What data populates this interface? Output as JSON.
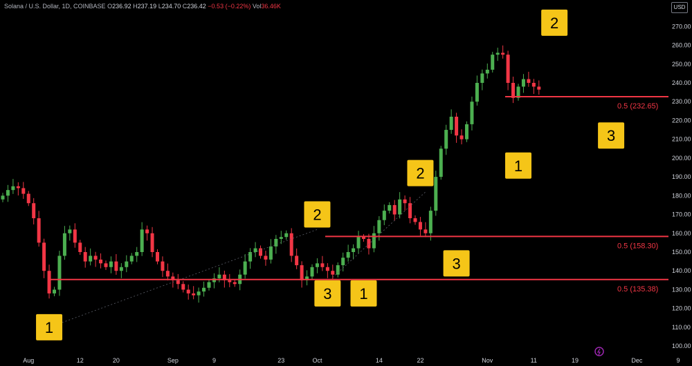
{
  "legend": {
    "symbol": "Solana / U.S. Dollar, 1D, COINBASE",
    "o_label": "O",
    "o": "236.92",
    "h_label": "H",
    "h": "237.19",
    "l_label": "L",
    "l": "234.70",
    "c_label": "C",
    "c": "236.42",
    "change": "−0.53 (−0.22%)",
    "vol_label": "Vol",
    "vol": "36.46K"
  },
  "currency_button": "USD",
  "colors": {
    "up": "#26a69a",
    "up_body": "#4caf50",
    "down": "#f23645",
    "fib": "#f23645",
    "wave_box": "#f5c518"
  },
  "chart_data": {
    "type": "candlestick",
    "x_ticks": [
      "Aug",
      "12",
      "20",
      "Sep",
      "9",
      "23",
      "Oct",
      "14",
      "22",
      "Nov",
      "11",
      "19",
      "Dec",
      "9"
    ],
    "y_ticks": [
      100,
      110,
      120,
      130,
      140,
      150,
      160,
      170,
      180,
      190,
      200,
      210,
      220,
      230,
      240,
      250,
      260,
      270
    ],
    "ylim": [
      96,
      276
    ],
    "closes": [
      180,
      183,
      185,
      184,
      181,
      176,
      168,
      155,
      140,
      128,
      130,
      148,
      160,
      162,
      155,
      150,
      145,
      148,
      146,
      144,
      142,
      145,
      140,
      142,
      145,
      148,
      150,
      162,
      160,
      150,
      145,
      140,
      137,
      135,
      133,
      130,
      128,
      127,
      129,
      131,
      134,
      136,
      138,
      135,
      134,
      133,
      138,
      145,
      150,
      152,
      148,
      146,
      153,
      157,
      158,
      160,
      148,
      143,
      135,
      137,
      142,
      144,
      142,
      140,
      138,
      143,
      147,
      150,
      152,
      158,
      157,
      152,
      160,
      167,
      172,
      175,
      170,
      178,
      176,
      168,
      166,
      162,
      160,
      172,
      190,
      205,
      215,
      222,
      212,
      210,
      218,
      230,
      240,
      245,
      247,
      255,
      256,
      255,
      240,
      232,
      238,
      242,
      240,
      238,
      236.42
    ],
    "fib_levels": [
      {
        "label": "0.5 (232.65)",
        "value": 232.65
      },
      {
        "label": "0.5 (158.30)",
        "value": 158.3
      },
      {
        "label": "0.5 (135.38)",
        "value": 135.38
      }
    ],
    "wave_labels": [
      {
        "text": "1",
        "date_index": 9,
        "price": 110
      },
      {
        "text": "2",
        "date_index": 61,
        "price": 170
      },
      {
        "text": "3",
        "date_index": 63,
        "price": 128
      },
      {
        "text": "1",
        "date_index": 70,
        "price": 128
      },
      {
        "text": "2",
        "date_index": 81,
        "price": 192
      },
      {
        "text": "3",
        "date_index": 88,
        "price": 144
      },
      {
        "text": "1",
        "date_index": 100,
        "price": 196
      },
      {
        "text": "2",
        "date_index": 107,
        "price": 272
      },
      {
        "text": "3",
        "date_index": 118,
        "price": 212
      }
    ]
  }
}
